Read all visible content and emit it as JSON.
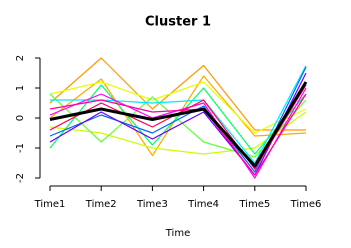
{
  "chart_data": {
    "type": "line",
    "title": "Cluster 1",
    "xlabel": "Time",
    "categories": [
      "Time1",
      "Time2",
      "Time3",
      "Time4",
      "Time5",
      "Time6"
    ],
    "series": [
      {
        "color": "#ff9900",
        "values": [
          0.5,
          2.0,
          0.3,
          1.75,
          -0.4,
          -0.4
        ]
      },
      {
        "color": "#ffaa00",
        "values": [
          0.0,
          1.3,
          -1.25,
          1.4,
          -0.6,
          -0.5
        ]
      },
      {
        "color": "#e6ff00",
        "values": [
          0.8,
          1.2,
          0.6,
          1.2,
          -0.5,
          0.3
        ]
      },
      {
        "color": "#ccff00",
        "values": [
          -0.3,
          -0.5,
          -1.0,
          -1.2,
          -1.0,
          0.2
        ]
      },
      {
        "color": "#66ff33",
        "values": [
          0.8,
          -0.8,
          0.7,
          -0.8,
          -1.3,
          0.6
        ]
      },
      {
        "color": "#00ff66",
        "values": [
          -1.0,
          1.1,
          -0.9,
          1.0,
          -1.2,
          0.8
        ]
      },
      {
        "color": "#00e6ff",
        "values": [
          0.6,
          0.6,
          0.5,
          0.6,
          -1.5,
          1.75
        ]
      },
      {
        "color": "#0066ff",
        "values": [
          -0.6,
          0.1,
          -0.5,
          0.4,
          -1.8,
          1.7
        ]
      },
      {
        "color": "#6600ff",
        "values": [
          -0.8,
          0.2,
          -0.7,
          0.2,
          -1.9,
          1.5
        ]
      },
      {
        "color": "#ff00ff",
        "values": [
          0.1,
          0.8,
          0.0,
          0.5,
          -2.0,
          1.0
        ]
      },
      {
        "color": "#ff0099",
        "values": [
          0.3,
          0.6,
          0.2,
          0.3,
          -1.9,
          0.8
        ]
      },
      {
        "color": "#ff0055",
        "values": [
          -0.4,
          0.5,
          -0.3,
          0.6,
          -1.7,
          1.1
        ]
      },
      {
        "color": "#000000",
        "values": [
          -0.05,
          0.3,
          -0.05,
          0.3,
          -1.6,
          1.2
        ]
      }
    ],
    "ylim": [
      -2,
      2
    ],
    "yticks": [
      -2,
      -1,
      0,
      1,
      2
    ]
  }
}
